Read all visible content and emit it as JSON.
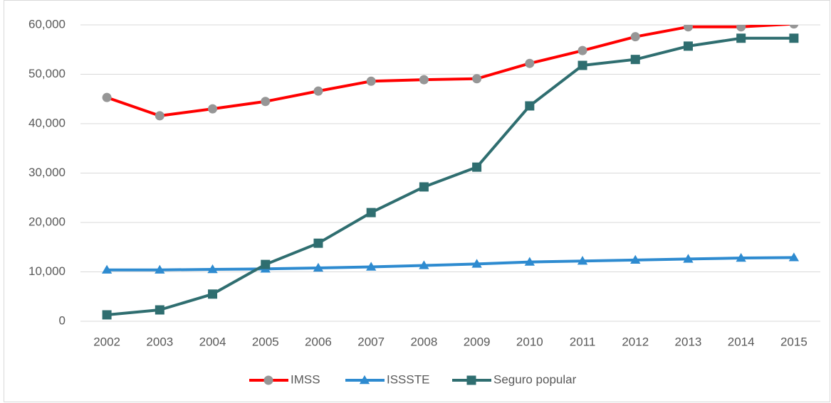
{
  "chart_data": {
    "type": "line",
    "categories": [
      "2002",
      "2003",
      "2004",
      "2005",
      "2006",
      "2007",
      "2008",
      "2009",
      "2010",
      "2011",
      "2012",
      "2013",
      "2014",
      "2015"
    ],
    "series": [
      {
        "name": "IMSS",
        "color": "#ff0000",
        "marker_color": "#969696",
        "marker": "circle",
        "values": [
          45300,
          41600,
          43000,
          44500,
          46600,
          48600,
          48900,
          49100,
          52200,
          54800,
          57600,
          59600,
          59600,
          60200
        ]
      },
      {
        "name": "ISSSTE",
        "color": "#2e8bd0",
        "marker_color": "#2e8bd0",
        "marker": "triangle",
        "values": [
          10400,
          10400,
          10500,
          10600,
          10800,
          11000,
          11300,
          11600,
          12000,
          12200,
          12400,
          12600,
          12800,
          12900
        ]
      },
      {
        "name": "Seguro popular",
        "color": "#2f6e70",
        "marker_color": "#2f6e70",
        "marker": "square",
        "values": [
          1300,
          2300,
          5500,
          11500,
          15800,
          22000,
          27200,
          31200,
          43600,
          51800,
          53000,
          55700,
          57300,
          57300
        ]
      }
    ],
    "ylim": [
      0,
      60000
    ],
    "yticks": [
      0,
      {
        "value": 10000,
        "label": "10,000"
      },
      {
        "value": 20000,
        "label": "20,000"
      },
      {
        "value": 30000,
        "label": "30,000"
      },
      {
        "value": 40000,
        "label": "40,000"
      },
      {
        "value": 50000,
        "label": "50,000"
      },
      {
        "value": 60000,
        "label": "60,000"
      }
    ],
    "grid": true,
    "legend": "bottom"
  }
}
